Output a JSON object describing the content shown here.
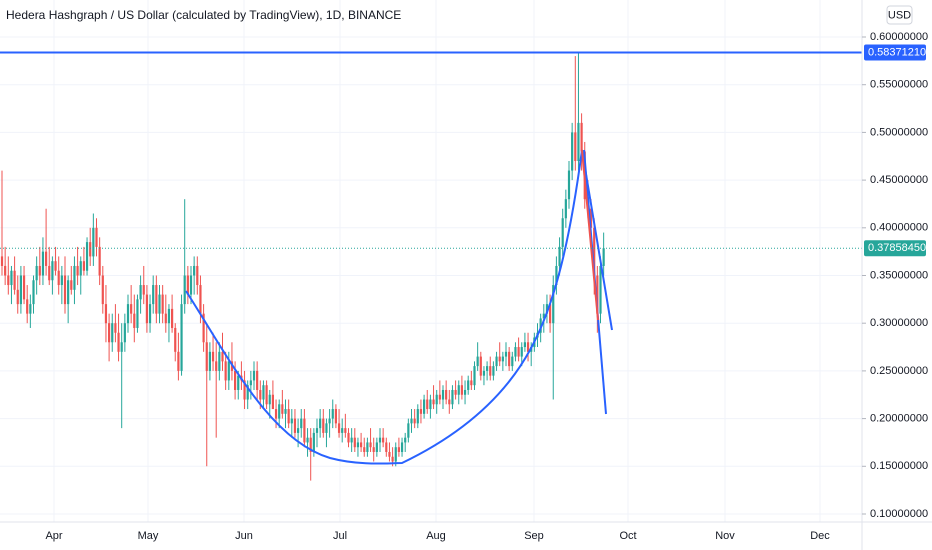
{
  "chart_data": {
    "type": "candlestick",
    "title": "Hedera Hashgraph / US Dollar (calculated by TradingView), 1D, BINANCE",
    "currency": "USD",
    "up_color": "#26a69a",
    "down_color": "#ef5350",
    "ylim": [
      0.0916,
      0.6388
    ],
    "yticks": [
      {
        "value": 0.6,
        "label": "0.60000000"
      },
      {
        "value": 0.55,
        "label": "0.55000000"
      },
      {
        "value": 0.5,
        "label": "0.50000000"
      },
      {
        "value": 0.45,
        "label": "0.45000000"
      },
      {
        "value": 0.4,
        "label": "0.40000000"
      },
      {
        "value": 0.35,
        "label": "0.35000000"
      },
      {
        "value": 0.3,
        "label": "0.30000000"
      },
      {
        "value": 0.25,
        "label": "0.25000000"
      },
      {
        "value": 0.2,
        "label": "0.20000000"
      },
      {
        "value": 0.15,
        "label": "0.15000000"
      },
      {
        "value": 0.1,
        "label": "0.10000000"
      }
    ],
    "x_labels": [
      "Apr",
      "May",
      "Jun",
      "Jul",
      "Aug",
      "Sep",
      "Oct",
      "Nov",
      "Dec"
    ],
    "horizontal_line": {
      "value": 0.5837121,
      "label": "0.58371210",
      "color": "#2962ff"
    },
    "last_price": {
      "value": 0.3785845,
      "label": "0.37858450",
      "color": "#26a69a"
    },
    "grid": true,
    "ohlc": [
      [
        0.37,
        0.46,
        0.35,
        0.36
      ],
      [
        0.36,
        0.38,
        0.34,
        0.35
      ],
      [
        0.35,
        0.37,
        0.33,
        0.34
      ],
      [
        0.34,
        0.36,
        0.32,
        0.355
      ],
      [
        0.355,
        0.37,
        0.33,
        0.335
      ],
      [
        0.335,
        0.35,
        0.31,
        0.32
      ],
      [
        0.32,
        0.36,
        0.31,
        0.35
      ],
      [
        0.35,
        0.36,
        0.32,
        0.325
      ],
      [
        0.325,
        0.34,
        0.3,
        0.31
      ],
      [
        0.31,
        0.33,
        0.295,
        0.32
      ],
      [
        0.32,
        0.35,
        0.31,
        0.345
      ],
      [
        0.345,
        0.37,
        0.33,
        0.36
      ],
      [
        0.36,
        0.38,
        0.34,
        0.35
      ],
      [
        0.35,
        0.39,
        0.34,
        0.375
      ],
      [
        0.375,
        0.42,
        0.35,
        0.36
      ],
      [
        0.36,
        0.38,
        0.34,
        0.345
      ],
      [
        0.345,
        0.37,
        0.33,
        0.365
      ],
      [
        0.365,
        0.38,
        0.35,
        0.355
      ],
      [
        0.355,
        0.37,
        0.33,
        0.34
      ],
      [
        0.34,
        0.36,
        0.32,
        0.35
      ],
      [
        0.35,
        0.37,
        0.31,
        0.32
      ],
      [
        0.32,
        0.35,
        0.3,
        0.345
      ],
      [
        0.345,
        0.36,
        0.33,
        0.335
      ],
      [
        0.335,
        0.37,
        0.32,
        0.36
      ],
      [
        0.36,
        0.38,
        0.34,
        0.35
      ],
      [
        0.35,
        0.37,
        0.33,
        0.365
      ],
      [
        0.365,
        0.38,
        0.35,
        0.355
      ],
      [
        0.355,
        0.39,
        0.35,
        0.385
      ],
      [
        0.385,
        0.4,
        0.36,
        0.37
      ],
      [
        0.37,
        0.415,
        0.36,
        0.4
      ],
      [
        0.4,
        0.41,
        0.37,
        0.38
      ],
      [
        0.38,
        0.39,
        0.34,
        0.35
      ],
      [
        0.35,
        0.36,
        0.31,
        0.32
      ],
      [
        0.32,
        0.34,
        0.28,
        0.3
      ],
      [
        0.3,
        0.31,
        0.26,
        0.28
      ],
      [
        0.28,
        0.31,
        0.27,
        0.3
      ],
      [
        0.3,
        0.32,
        0.28,
        0.29
      ],
      [
        0.29,
        0.31,
        0.26,
        0.27
      ],
      [
        0.27,
        0.3,
        0.19,
        0.28
      ],
      [
        0.28,
        0.31,
        0.27,
        0.3
      ],
      [
        0.3,
        0.33,
        0.29,
        0.32
      ],
      [
        0.32,
        0.34,
        0.3,
        0.31
      ],
      [
        0.31,
        0.33,
        0.28,
        0.295
      ],
      [
        0.295,
        0.33,
        0.29,
        0.325
      ],
      [
        0.325,
        0.35,
        0.31,
        0.34
      ],
      [
        0.34,
        0.36,
        0.32,
        0.33
      ],
      [
        0.33,
        0.34,
        0.29,
        0.3
      ],
      [
        0.3,
        0.33,
        0.29,
        0.32
      ],
      [
        0.32,
        0.35,
        0.31,
        0.34
      ],
      [
        0.34,
        0.35,
        0.3,
        0.31
      ],
      [
        0.31,
        0.34,
        0.3,
        0.33
      ],
      [
        0.33,
        0.34,
        0.3,
        0.31
      ],
      [
        0.31,
        0.33,
        0.29,
        0.3
      ],
      [
        0.3,
        0.32,
        0.28,
        0.315
      ],
      [
        0.315,
        0.33,
        0.29,
        0.295
      ],
      [
        0.295,
        0.3,
        0.26,
        0.27
      ],
      [
        0.27,
        0.29,
        0.24,
        0.25
      ],
      [
        0.25,
        0.33,
        0.245,
        0.32
      ],
      [
        0.32,
        0.43,
        0.31,
        0.35
      ],
      [
        0.35,
        0.36,
        0.32,
        0.33
      ],
      [
        0.33,
        0.36,
        0.32,
        0.35
      ],
      [
        0.35,
        0.37,
        0.33,
        0.36
      ],
      [
        0.36,
        0.37,
        0.33,
        0.34
      ],
      [
        0.34,
        0.35,
        0.3,
        0.31
      ],
      [
        0.31,
        0.32,
        0.27,
        0.28
      ],
      [
        0.28,
        0.3,
        0.15,
        0.25
      ],
      [
        0.25,
        0.28,
        0.24,
        0.27
      ],
      [
        0.27,
        0.29,
        0.25,
        0.26
      ],
      [
        0.26,
        0.28,
        0.18,
        0.25
      ],
      [
        0.25,
        0.28,
        0.24,
        0.27
      ],
      [
        0.27,
        0.29,
        0.25,
        0.26
      ],
      [
        0.26,
        0.27,
        0.23,
        0.24
      ],
      [
        0.24,
        0.27,
        0.23,
        0.26
      ],
      [
        0.26,
        0.28,
        0.24,
        0.25
      ],
      [
        0.25,
        0.26,
        0.22,
        0.23
      ],
      [
        0.23,
        0.25,
        0.22,
        0.245
      ],
      [
        0.245,
        0.26,
        0.23,
        0.24
      ],
      [
        0.24,
        0.25,
        0.21,
        0.22
      ],
      [
        0.22,
        0.24,
        0.21,
        0.235
      ],
      [
        0.235,
        0.25,
        0.22,
        0.24
      ],
      [
        0.24,
        0.26,
        0.23,
        0.25
      ],
      [
        0.25,
        0.26,
        0.22,
        0.23
      ],
      [
        0.23,
        0.24,
        0.21,
        0.22
      ],
      [
        0.22,
        0.24,
        0.21,
        0.235
      ],
      [
        0.235,
        0.24,
        0.21,
        0.215
      ],
      [
        0.215,
        0.23,
        0.2,
        0.225
      ],
      [
        0.225,
        0.24,
        0.21,
        0.21
      ],
      [
        0.21,
        0.22,
        0.19,
        0.2
      ],
      [
        0.2,
        0.22,
        0.19,
        0.215
      ],
      [
        0.215,
        0.23,
        0.2,
        0.205
      ],
      [
        0.205,
        0.22,
        0.19,
        0.21
      ],
      [
        0.21,
        0.22,
        0.19,
        0.195
      ],
      [
        0.195,
        0.21,
        0.18,
        0.2
      ],
      [
        0.2,
        0.21,
        0.18,
        0.185
      ],
      [
        0.185,
        0.2,
        0.17,
        0.19
      ],
      [
        0.19,
        0.21,
        0.18,
        0.2
      ],
      [
        0.2,
        0.21,
        0.17,
        0.175
      ],
      [
        0.175,
        0.19,
        0.16,
        0.18
      ],
      [
        0.18,
        0.19,
        0.135,
        0.165
      ],
      [
        0.165,
        0.19,
        0.16,
        0.185
      ],
      [
        0.185,
        0.2,
        0.17,
        0.19
      ],
      [
        0.19,
        0.21,
        0.18,
        0.2
      ],
      [
        0.2,
        0.21,
        0.18,
        0.185
      ],
      [
        0.185,
        0.2,
        0.17,
        0.195
      ],
      [
        0.195,
        0.21,
        0.18,
        0.2
      ],
      [
        0.2,
        0.22,
        0.19,
        0.21
      ],
      [
        0.21,
        0.215,
        0.19,
        0.195
      ],
      [
        0.195,
        0.21,
        0.18,
        0.185
      ],
      [
        0.185,
        0.2,
        0.175,
        0.19
      ],
      [
        0.19,
        0.205,
        0.18,
        0.185
      ],
      [
        0.185,
        0.19,
        0.17,
        0.175
      ],
      [
        0.175,
        0.19,
        0.165,
        0.18
      ],
      [
        0.18,
        0.19,
        0.165,
        0.17
      ],
      [
        0.17,
        0.18,
        0.16,
        0.175
      ],
      [
        0.175,
        0.185,
        0.165,
        0.17
      ],
      [
        0.17,
        0.18,
        0.16,
        0.165
      ],
      [
        0.165,
        0.18,
        0.16,
        0.175
      ],
      [
        0.175,
        0.19,
        0.165,
        0.17
      ],
      [
        0.17,
        0.18,
        0.155,
        0.165
      ],
      [
        0.165,
        0.18,
        0.16,
        0.175
      ],
      [
        0.175,
        0.19,
        0.165,
        0.18
      ],
      [
        0.18,
        0.19,
        0.17,
        0.175
      ],
      [
        0.175,
        0.18,
        0.16,
        0.165
      ],
      [
        0.165,
        0.175,
        0.155,
        0.16
      ],
      [
        0.16,
        0.17,
        0.15,
        0.155
      ],
      [
        0.155,
        0.175,
        0.15,
        0.17
      ],
      [
        0.17,
        0.18,
        0.16,
        0.165
      ],
      [
        0.165,
        0.18,
        0.16,
        0.175
      ],
      [
        0.175,
        0.185,
        0.165,
        0.18
      ],
      [
        0.18,
        0.2,
        0.175,
        0.195
      ],
      [
        0.195,
        0.21,
        0.185,
        0.2
      ],
      [
        0.2,
        0.21,
        0.19,
        0.195
      ],
      [
        0.195,
        0.215,
        0.19,
        0.21
      ],
      [
        0.21,
        0.22,
        0.195,
        0.205
      ],
      [
        0.205,
        0.225,
        0.2,
        0.22
      ],
      [
        0.22,
        0.23,
        0.205,
        0.21
      ],
      [
        0.21,
        0.225,
        0.2,
        0.22
      ],
      [
        0.22,
        0.235,
        0.21,
        0.215
      ],
      [
        0.215,
        0.23,
        0.205,
        0.225
      ],
      [
        0.225,
        0.24,
        0.215,
        0.22
      ],
      [
        0.22,
        0.235,
        0.21,
        0.23
      ],
      [
        0.23,
        0.24,
        0.215,
        0.22
      ],
      [
        0.22,
        0.23,
        0.205,
        0.215
      ],
      [
        0.215,
        0.235,
        0.21,
        0.23
      ],
      [
        0.23,
        0.24,
        0.22,
        0.225
      ],
      [
        0.225,
        0.24,
        0.215,
        0.235
      ],
      [
        0.235,
        0.245,
        0.22,
        0.225
      ],
      [
        0.225,
        0.24,
        0.215,
        0.23
      ],
      [
        0.23,
        0.245,
        0.225,
        0.24
      ],
      [
        0.24,
        0.25,
        0.23,
        0.235
      ],
      [
        0.235,
        0.26,
        0.23,
        0.255
      ],
      [
        0.255,
        0.28,
        0.25,
        0.265
      ],
      [
        0.265,
        0.27,
        0.24,
        0.245
      ],
      [
        0.245,
        0.255,
        0.235,
        0.25
      ],
      [
        0.25,
        0.26,
        0.24,
        0.255
      ],
      [
        0.255,
        0.265,
        0.24,
        0.245
      ],
      [
        0.245,
        0.26,
        0.24,
        0.255
      ],
      [
        0.255,
        0.27,
        0.25,
        0.265
      ],
      [
        0.265,
        0.28,
        0.255,
        0.26
      ],
      [
        0.26,
        0.27,
        0.25,
        0.265
      ],
      [
        0.265,
        0.28,
        0.255,
        0.27
      ],
      [
        0.27,
        0.275,
        0.25,
        0.255
      ],
      [
        0.255,
        0.27,
        0.25,
        0.265
      ],
      [
        0.265,
        0.28,
        0.26,
        0.275
      ],
      [
        0.275,
        0.285,
        0.26,
        0.265
      ],
      [
        0.265,
        0.28,
        0.255,
        0.275
      ],
      [
        0.275,
        0.29,
        0.27,
        0.28
      ],
      [
        0.28,
        0.29,
        0.26,
        0.27
      ],
      [
        0.27,
        0.28,
        0.255,
        0.275
      ],
      [
        0.275,
        0.29,
        0.27,
        0.285
      ],
      [
        0.285,
        0.3,
        0.275,
        0.29
      ],
      [
        0.29,
        0.31,
        0.28,
        0.305
      ],
      [
        0.305,
        0.32,
        0.29,
        0.31
      ],
      [
        0.31,
        0.33,
        0.3,
        0.32
      ],
      [
        0.32,
        0.33,
        0.29,
        0.3
      ],
      [
        0.3,
        0.35,
        0.22,
        0.34
      ],
      [
        0.34,
        0.37,
        0.33,
        0.36
      ],
      [
        0.36,
        0.39,
        0.35,
        0.38
      ],
      [
        0.38,
        0.42,
        0.37,
        0.41
      ],
      [
        0.41,
        0.44,
        0.4,
        0.43
      ],
      [
        0.43,
        0.47,
        0.42,
        0.46
      ],
      [
        0.46,
        0.51,
        0.45,
        0.5
      ],
      [
        0.5,
        0.58,
        0.46,
        0.47
      ],
      [
        0.47,
        0.584,
        0.46,
        0.51
      ],
      [
        0.51,
        0.52,
        0.46,
        0.48
      ],
      [
        0.48,
        0.49,
        0.42,
        0.43
      ],
      [
        0.43,
        0.45,
        0.41,
        0.42
      ],
      [
        0.42,
        0.43,
        0.38,
        0.4
      ],
      [
        0.4,
        0.41,
        0.33,
        0.35
      ],
      [
        0.35,
        0.36,
        0.29,
        0.31
      ],
      [
        0.31,
        0.37,
        0.3,
        0.36
      ],
      [
        0.36,
        0.395,
        0.35,
        0.3785845
      ]
    ]
  }
}
